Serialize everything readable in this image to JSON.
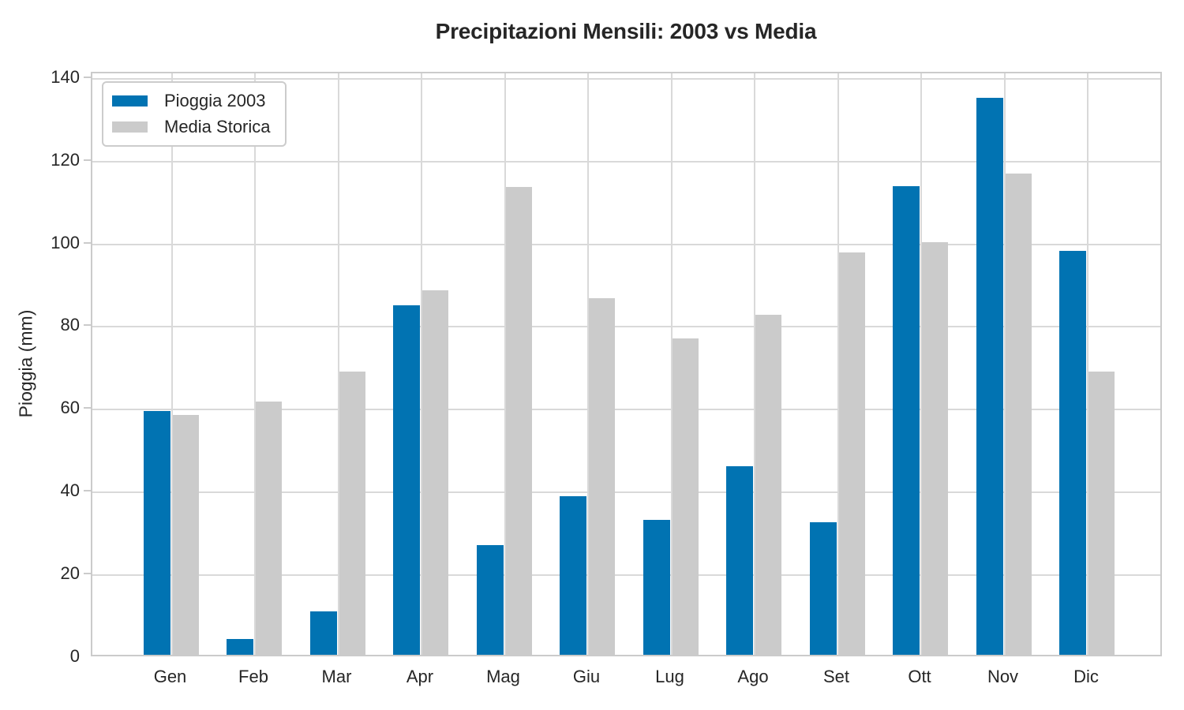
{
  "chart_data": {
    "type": "bar",
    "title": "Precipitazioni Mensili: 2003 vs Media",
    "xlabel": "",
    "ylabel": "Pioggia (mm)",
    "categories": [
      "Gen",
      "Feb",
      "Mar",
      "Apr",
      "Mag",
      "Giu",
      "Lug",
      "Ago",
      "Set",
      "Ott",
      "Nov",
      "Dic"
    ],
    "series": [
      {
        "name": "Pioggia 2003",
        "color": "#0173b2",
        "values": [
          59.0,
          3.8,
          10.4,
          84.5,
          26.5,
          38.4,
          32.7,
          45.6,
          32.1,
          113.2,
          134.6,
          97.7
        ]
      },
      {
        "name": "Media Storica",
        "color": "#cbcbcb",
        "values": [
          58.0,
          61.2,
          68.5,
          88.1,
          113.0,
          86.2,
          76.5,
          82.2,
          97.2,
          99.7,
          116.3,
          68.5
        ]
      }
    ],
    "y_ticks": [
      0,
      20,
      40,
      60,
      80,
      100,
      120,
      140
    ],
    "ylim": [
      0,
      141.3
    ],
    "grid": true,
    "legend_position": "upper-left"
  },
  "styles": {
    "text_color": "#262626",
    "grid_color": "#d9d9d9",
    "frame_color": "#cbcbcb",
    "background": "#ffffff"
  }
}
